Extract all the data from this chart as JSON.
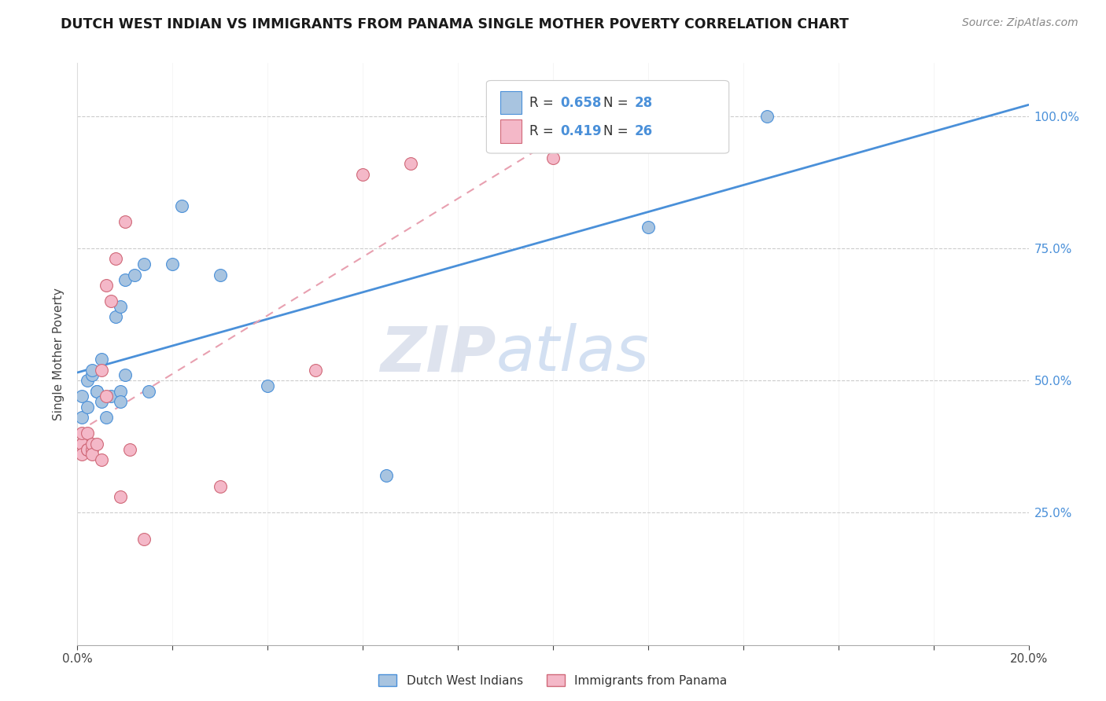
{
  "title": "DUTCH WEST INDIAN VS IMMIGRANTS FROM PANAMA SINGLE MOTHER POVERTY CORRELATION CHART",
  "source": "Source: ZipAtlas.com",
  "ylabel": "Single Mother Poverty",
  "blue_color": "#a8c4e0",
  "pink_color": "#f4b8c8",
  "blue_line_color": "#4a90d9",
  "pink_line_color": "#e8788a",
  "watermark_zip": "ZIP",
  "watermark_atlas": "atlas",
  "legend_label_blue": "Dutch West Indians",
  "legend_label_pink": "Immigrants from Panama",
  "R_blue": 0.658,
  "N_blue": 28,
  "R_pink": 0.419,
  "N_pink": 26,
  "blue_scatter_x": [
    0.001,
    0.001,
    0.002,
    0.002,
    0.003,
    0.003,
    0.004,
    0.004,
    0.005,
    0.005,
    0.006,
    0.007,
    0.008,
    0.009,
    0.009,
    0.009,
    0.01,
    0.01,
    0.012,
    0.014,
    0.015,
    0.02,
    0.022,
    0.03,
    0.04,
    0.065,
    0.12,
    0.145
  ],
  "blue_scatter_y": [
    0.43,
    0.47,
    0.5,
    0.45,
    0.51,
    0.52,
    0.48,
    0.48,
    0.46,
    0.54,
    0.43,
    0.47,
    0.62,
    0.48,
    0.46,
    0.64,
    0.51,
    0.69,
    0.7,
    0.72,
    0.48,
    0.72,
    0.83,
    0.7,
    0.49,
    0.32,
    0.79,
    1.0
  ],
  "pink_scatter_x": [
    0.001,
    0.001,
    0.001,
    0.001,
    0.002,
    0.002,
    0.002,
    0.003,
    0.003,
    0.003,
    0.004,
    0.005,
    0.005,
    0.006,
    0.006,
    0.007,
    0.008,
    0.009,
    0.01,
    0.011,
    0.014,
    0.03,
    0.05,
    0.06,
    0.07,
    0.1
  ],
  "pink_scatter_y": [
    0.38,
    0.38,
    0.4,
    0.36,
    0.37,
    0.37,
    0.4,
    0.37,
    0.38,
    0.36,
    0.38,
    0.52,
    0.35,
    0.47,
    0.68,
    0.65,
    0.73,
    0.28,
    0.8,
    0.37,
    0.2,
    0.3,
    0.52,
    0.89,
    0.91,
    0.92
  ],
  "xlim": [
    0.0,
    0.2
  ],
  "ylim": [
    0.0,
    1.1
  ],
  "x_ticks": [
    0.0,
    0.02,
    0.04,
    0.06,
    0.08,
    0.1,
    0.12,
    0.14,
    0.16,
    0.18,
    0.2
  ],
  "y_ticks": [
    0.0,
    0.25,
    0.5,
    0.75,
    1.0
  ],
  "figsize": [
    14.06,
    8.92
  ],
  "dpi": 100
}
